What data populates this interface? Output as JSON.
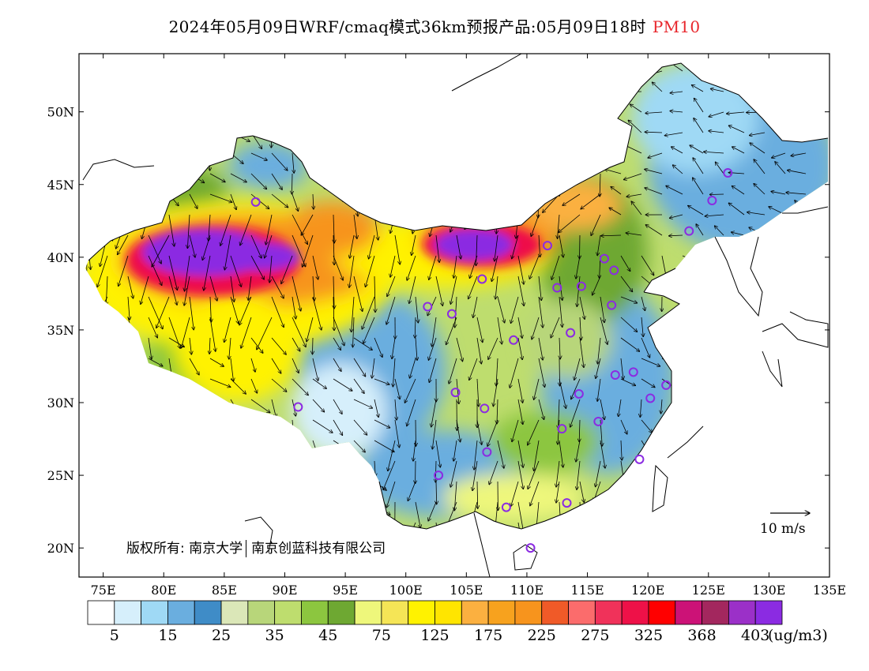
{
  "title": {
    "text": "2024年05月09日WRF/cmaq模式36km预报产品:05月09日18时",
    "variable": "PM10"
  },
  "axes": {
    "lon_labels": [
      "75E",
      "80E",
      "85E",
      "90E",
      "95E",
      "100E",
      "105E",
      "110E",
      "115E",
      "120E",
      "125E",
      "130E",
      "135E"
    ],
    "lon_values": [
      75,
      80,
      85,
      90,
      95,
      100,
      105,
      110,
      115,
      120,
      125,
      130,
      135
    ],
    "lat_labels": [
      "50N",
      "45N",
      "40N",
      "35N",
      "30N",
      "25N",
      "20N"
    ],
    "lat_values": [
      50,
      45,
      40,
      35,
      30,
      25,
      20
    ],
    "lon_range": [
      73,
      135
    ],
    "lat_range": [
      18,
      54
    ]
  },
  "wind_reference": {
    "label": "10 m/s"
  },
  "copyright": {
    "prefix": "版权所有:",
    "org1": "南京大学",
    "org2": "南京创蓝科技有限公司"
  },
  "colorbar": {
    "colors": [
      "#ffffff",
      "#d6effb",
      "#9fd9f5",
      "#6aaedf",
      "#3f8cc7",
      "#dbe7b8",
      "#b8d67a",
      "#bedd6e",
      "#8cc63f",
      "#6ea832",
      "#eef77b",
      "#f5e556",
      "#fff200",
      "#ffe500",
      "#fbb040",
      "#f7a21e",
      "#f7941d",
      "#f05a28",
      "#fb6c6c",
      "#f0325a",
      "#ee1148",
      "#ff0000",
      "#cc1277",
      "#a3275e",
      "#9b30c8",
      "#8b2be2"
    ],
    "labels": [
      "5",
      "15",
      "25",
      "35",
      "45",
      "75",
      "125",
      "175",
      "225",
      "275",
      "325",
      "368",
      "403"
    ],
    "unit": "(ug/m3)"
  },
  "cities": [
    {
      "lon": 126.6,
      "lat": 45.8
    },
    {
      "lon": 125.3,
      "lat": 43.9
    },
    {
      "lon": 123.4,
      "lat": 41.8
    },
    {
      "lon": 116.4,
      "lat": 39.9
    },
    {
      "lon": 117.2,
      "lat": 39.1
    },
    {
      "lon": 114.5,
      "lat": 38.0
    },
    {
      "lon": 112.5,
      "lat": 37.9
    },
    {
      "lon": 111.7,
      "lat": 40.8
    },
    {
      "lon": 117.0,
      "lat": 36.7
    },
    {
      "lon": 113.6,
      "lat": 34.8
    },
    {
      "lon": 108.9,
      "lat": 34.3
    },
    {
      "lon": 106.3,
      "lat": 38.5
    },
    {
      "lon": 103.8,
      "lat": 36.1
    },
    {
      "lon": 101.8,
      "lat": 36.6
    },
    {
      "lon": 87.6,
      "lat": 43.8
    },
    {
      "lon": 91.1,
      "lat": 29.7
    },
    {
      "lon": 104.1,
      "lat": 30.7
    },
    {
      "lon": 106.5,
      "lat": 29.6
    },
    {
      "lon": 106.7,
      "lat": 26.6
    },
    {
      "lon": 102.7,
      "lat": 25.0
    },
    {
      "lon": 108.3,
      "lat": 22.8
    },
    {
      "lon": 113.3,
      "lat": 23.1
    },
    {
      "lon": 110.3,
      "lat": 20.0
    },
    {
      "lon": 119.3,
      "lat": 26.1
    },
    {
      "lon": 115.9,
      "lat": 28.7
    },
    {
      "lon": 112.9,
      "lat": 28.2
    },
    {
      "lon": 114.3,
      "lat": 30.6
    },
    {
      "lon": 117.3,
      "lat": 31.9
    },
    {
      "lon": 118.8,
      "lat": 32.1
    },
    {
      "lon": 120.2,
      "lat": 30.3
    },
    {
      "lon": 121.5,
      "lat": 31.2
    }
  ]
}
